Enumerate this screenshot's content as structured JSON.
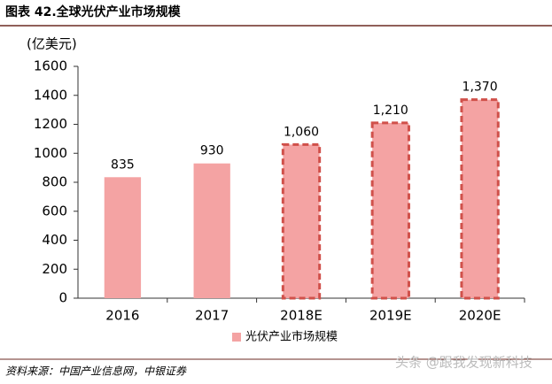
{
  "title": "图表 42.全球光伏产业市场规模",
  "source": "资料来源：中国产业信息网，中银证券",
  "watermark": "头条 @跟我发现新科技",
  "chart_data": {
    "type": "bar",
    "unit_label": "(亿美元)",
    "categories": [
      "2016",
      "2017",
      "2018E",
      "2019E",
      "2020E"
    ],
    "series": [
      {
        "name": "光伏产业市场规模",
        "color": "#f4a3a3",
        "border_color": "#d0504a",
        "values": [
          835,
          930,
          1060,
          1210,
          1370
        ],
        "value_labels": [
          "835",
          "930",
          "1,060",
          "1,210",
          "1,370"
        ],
        "dashed": [
          false,
          false,
          true,
          true,
          true
        ]
      }
    ],
    "ylim": [
      0,
      1600
    ],
    "yticks": [
      0,
      200,
      400,
      600,
      800,
      1000,
      1200,
      1400,
      1600
    ],
    "grid": false,
    "legend": "bottom"
  }
}
